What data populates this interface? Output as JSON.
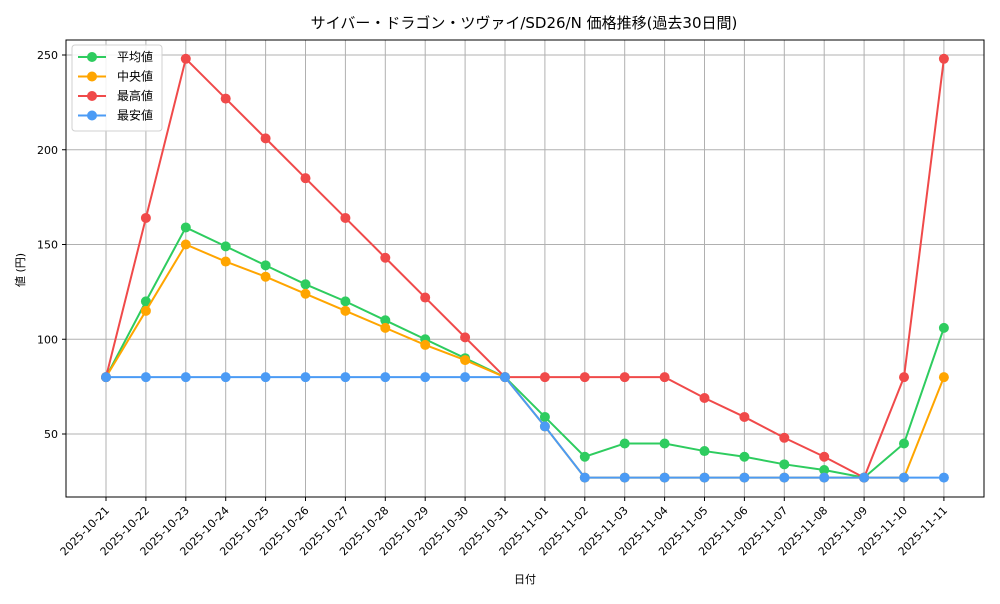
{
  "chart_data": {
    "type": "line",
    "title": "サイバー・ドラゴン・ツヴァイ/SD26/N 価格推移(過去30日間)",
    "xlabel": "日付",
    "ylabel": "値 (円)",
    "ylim": [
      15,
      260
    ],
    "yticks": [
      50,
      100,
      150,
      200,
      250
    ],
    "grid": true,
    "legend_position": "upper left",
    "x": [
      "2025-10-21",
      "2025-10-22",
      "2025-10-23",
      "2025-10-24",
      "2025-10-25",
      "2025-10-26",
      "2025-10-27",
      "2025-10-28",
      "2025-10-29",
      "2025-10-30",
      "2025-10-31",
      "2025-11-01",
      "2025-11-02",
      "2025-11-03",
      "2025-11-04",
      "2025-11-05",
      "2025-11-06",
      "2025-11-07",
      "2025-11-08",
      "2025-11-09",
      "2025-11-10",
      "2025-11-11"
    ],
    "series": [
      {
        "name": "平均値",
        "color": "#2ecc5f",
        "values": [
          80,
          120,
          159,
          149,
          139,
          129,
          120,
          110,
          100,
          90,
          80,
          59,
          38,
          45,
          45,
          41,
          38,
          34,
          31,
          27,
          45,
          106
        ]
      },
      {
        "name": "中央値",
        "color": "#ffa500",
        "values": [
          80,
          115,
          150,
          141,
          133,
          124,
          115,
          106,
          97,
          89,
          80,
          54,
          27,
          27,
          27,
          27,
          27,
          27,
          27,
          27,
          27,
          80
        ]
      },
      {
        "name": "最高値",
        "color": "#f04a4a",
        "values": [
          80,
          164,
          248,
          227,
          206,
          185,
          164,
          143,
          122,
          101,
          80,
          80,
          80,
          80,
          80,
          69,
          59,
          48,
          38,
          27,
          80,
          248
        ]
      },
      {
        "name": "最安値",
        "color": "#4b9bf5",
        "values": [
          80,
          80,
          80,
          80,
          80,
          80,
          80,
          80,
          80,
          80,
          80,
          54,
          27,
          27,
          27,
          27,
          27,
          27,
          27,
          27,
          27,
          27
        ]
      }
    ]
  }
}
